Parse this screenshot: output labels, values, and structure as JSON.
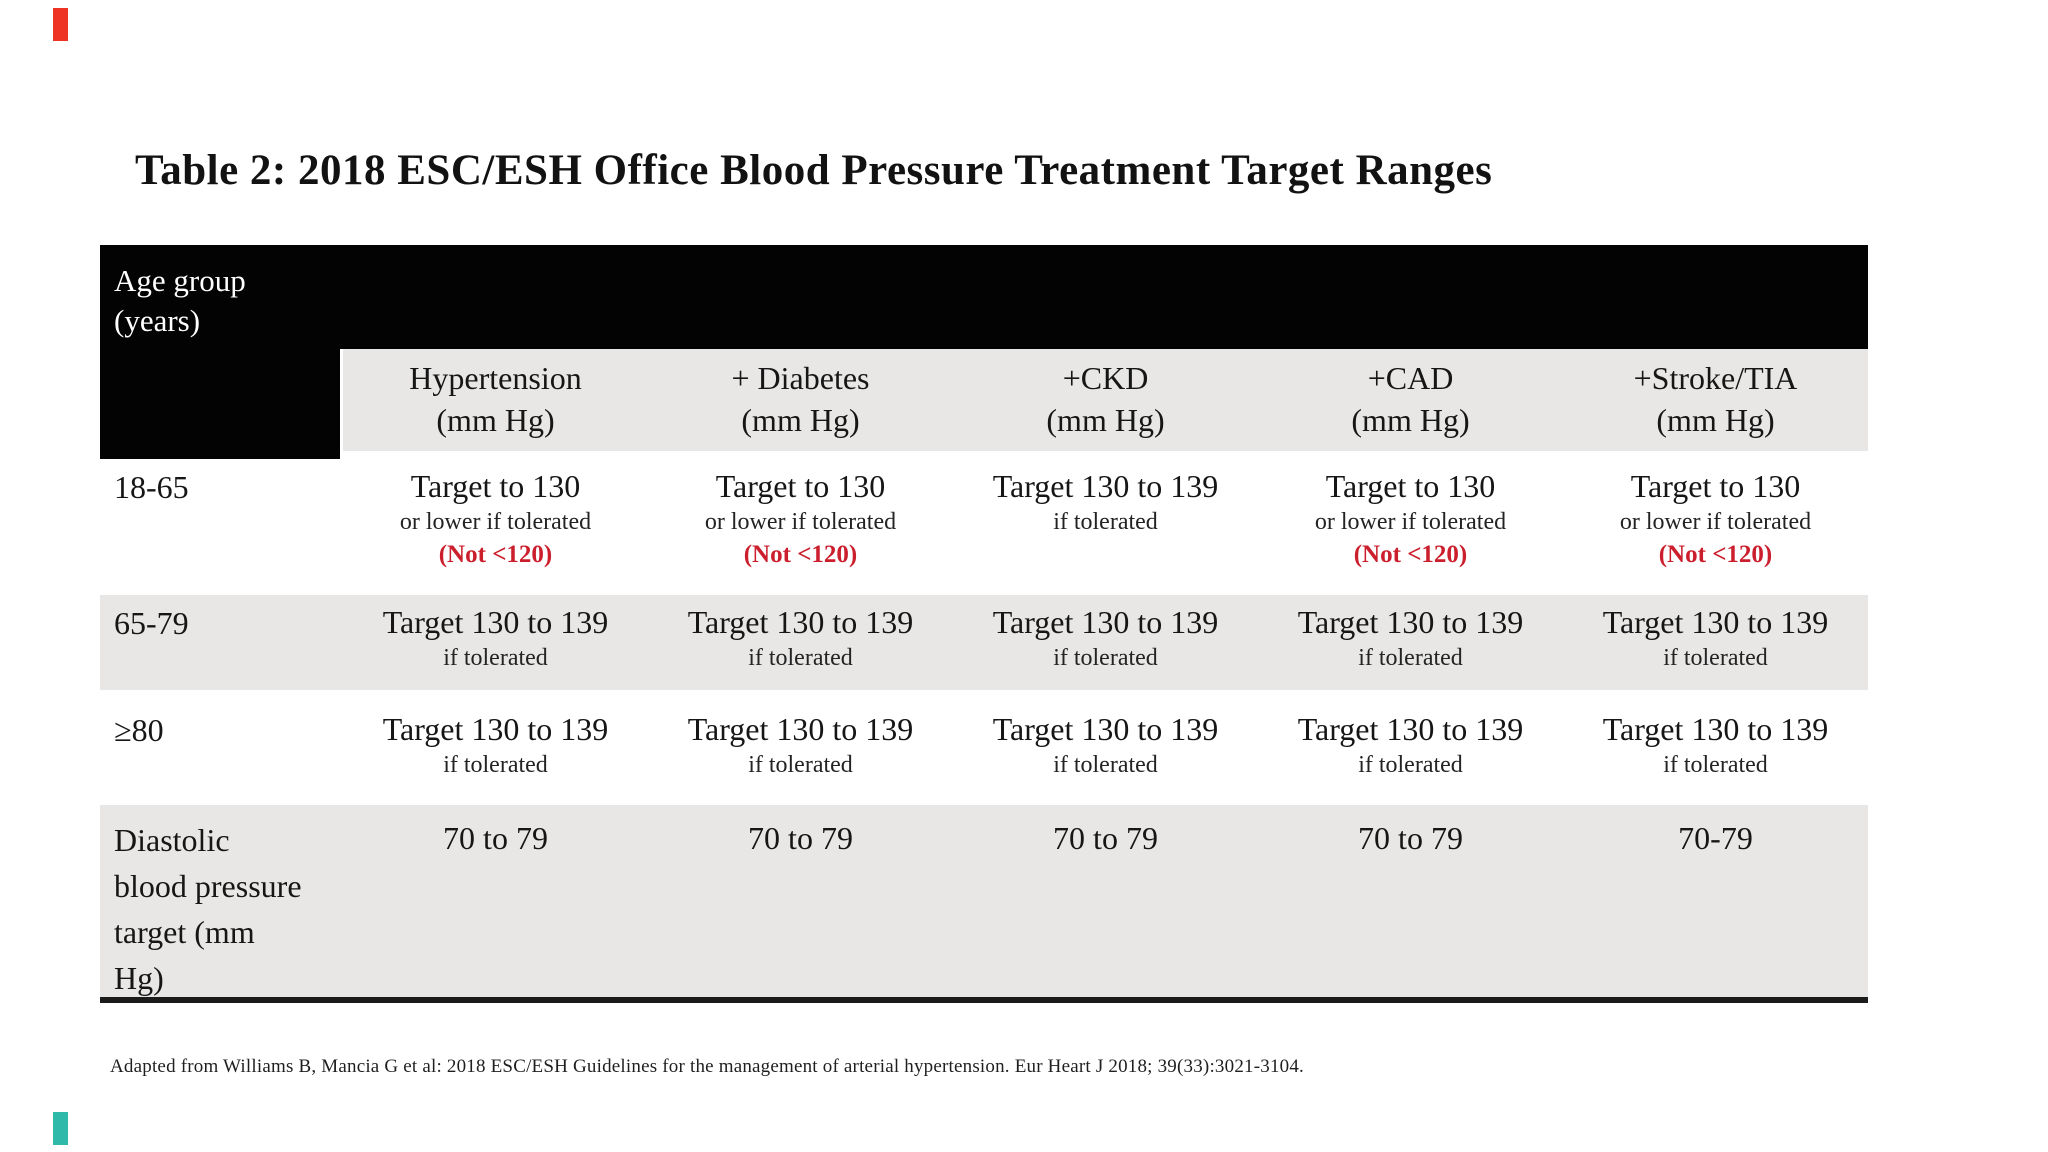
{
  "page": {
    "title": "Table 2: 2018 ESC/ESH Office Blood Pressure Treatment Target Ranges",
    "footnote": "Adapted from Williams B, Mancia G et al: 2018 ESC/ESH Guidelines for the management of arterial hypertension. Eur Heart J 2018; 39(33):3021-3104."
  },
  "colors": {
    "header_bg": "#030303",
    "header_text": "#ffffff",
    "alt_row_bg": "#e8e7e6",
    "alert_red": "#cb1f2d",
    "corner_mark_red": "#ee3224",
    "corner_mark_teal": "#2fb9a9"
  },
  "table": {
    "corner": {
      "line1": "Age group",
      "line2": "(years)"
    },
    "columns": [
      {
        "name": "Hypertension",
        "unit": "(mm Hg)"
      },
      {
        "name": "+ Diabetes",
        "unit": "(mm Hg)"
      },
      {
        "name": "+CKD",
        "unit": "(mm Hg)"
      },
      {
        "name": "+CAD",
        "unit": "(mm Hg)"
      },
      {
        "name": "+Stroke/TIA",
        "unit": "(mm Hg)"
      }
    ],
    "rows": [
      {
        "label": "18-65",
        "cells": [
          {
            "main": "Target to 130",
            "sub": "or lower if tolerated",
            "alert": "(Not <120)"
          },
          {
            "main": "Target to 130",
            "sub": "or lower if tolerated",
            "alert": "(Not <120)"
          },
          {
            "main": "Target 130 to 139",
            "sub": "if tolerated",
            "alert": ""
          },
          {
            "main": "Target to 130",
            "sub": "or lower if tolerated",
            "alert": "(Not <120)"
          },
          {
            "main": "Target to 130",
            "sub": "or lower if tolerated",
            "alert": "(Not <120)"
          }
        ]
      },
      {
        "label": "65-79",
        "cells": [
          {
            "main": "Target 130 to 139",
            "sub": "if tolerated"
          },
          {
            "main": "Target 130 to 139",
            "sub": "if tolerated"
          },
          {
            "main": "Target 130 to 139",
            "sub": "if tolerated"
          },
          {
            "main": "Target 130 to 139",
            "sub": "if tolerated"
          },
          {
            "main": "Target 130 to 139",
            "sub": "if tolerated"
          }
        ]
      },
      {
        "label": "≥80",
        "cells": [
          {
            "main": "Target 130 to 139",
            "sub": "if tolerated"
          },
          {
            "main": "Target 130 to 139",
            "sub": "if tolerated"
          },
          {
            "main": "Target 130 to 139",
            "sub": "if tolerated"
          },
          {
            "main": "Target 130 to 139",
            "sub": "if tolerated"
          },
          {
            "main": "Target 130 to 139",
            "sub": "if tolerated"
          }
        ]
      },
      {
        "label": "Diastolic\nblood pressure\ntarget (mm\nHg)",
        "cells": [
          {
            "main": "70 to 79"
          },
          {
            "main": "70 to 79"
          },
          {
            "main": "70 to 79"
          },
          {
            "main": "70 to 79"
          },
          {
            "main": "70-79"
          }
        ]
      }
    ]
  }
}
